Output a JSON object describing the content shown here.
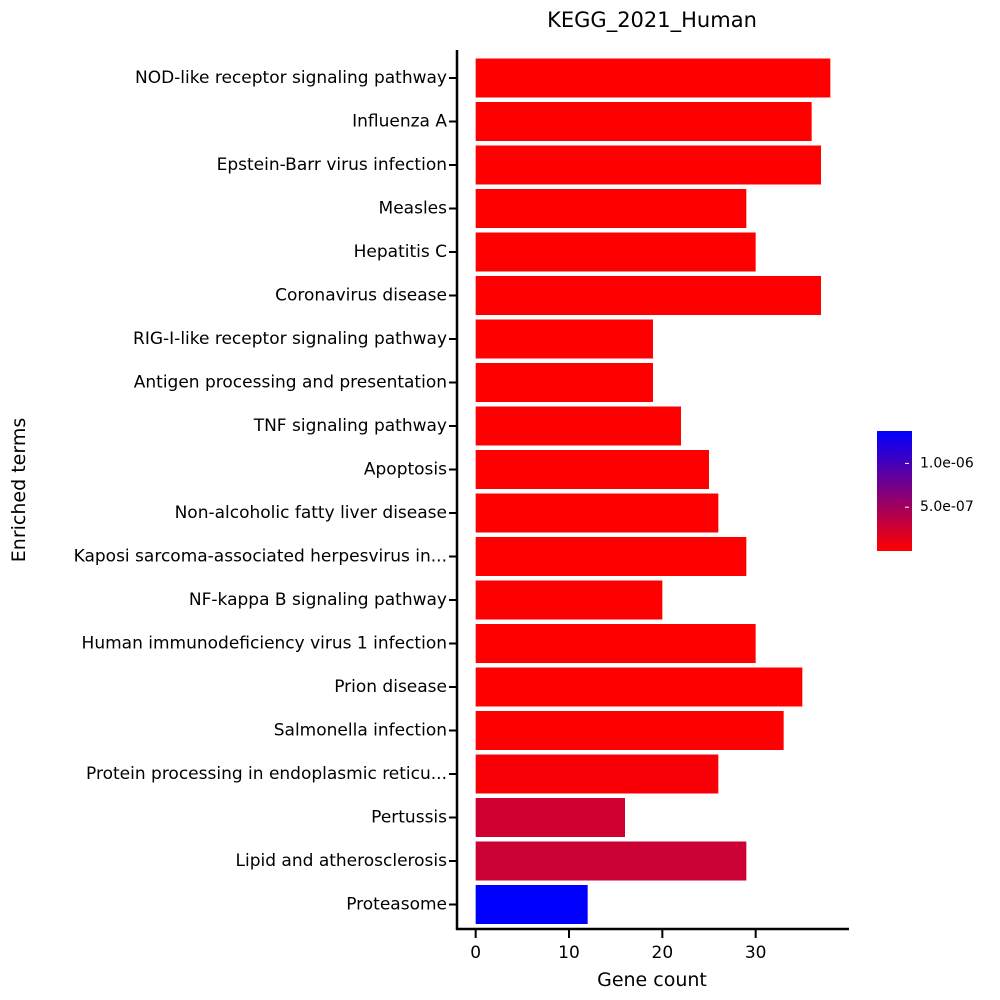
{
  "chart_data": {
    "type": "bar",
    "orientation": "horizontal",
    "title": "KEGG_2021_Human",
    "xlabel": "Gene count",
    "ylabel": "Enriched terms",
    "xlim": [
      -2,
      40
    ],
    "xticks": [
      0,
      10,
      20,
      30
    ],
    "grid": false,
    "categories": [
      "NOD-like receptor signaling pathway",
      "Influenza A",
      "Epstein-Barr virus infection",
      "Measles",
      "Hepatitis C",
      "Coronavirus disease",
      "RIG-I-like receptor signaling pathway",
      "Antigen processing and presentation",
      "TNF signaling pathway",
      "Apoptosis",
      "Non-alcoholic fatty liver disease",
      "Kaposi sarcoma-associated herpesvirus in...",
      "NF-kappa B signaling pathway",
      "Human immunodeficiency virus 1 infection",
      "Prion disease",
      "Salmonella infection",
      "Protein processing in endoplasmic reticu...",
      "Pertussis",
      "Lipid and atherosclerosis",
      "Proteasome"
    ],
    "values": [
      38,
      36,
      37,
      29,
      30,
      37,
      19,
      19,
      22,
      25,
      26,
      29,
      20,
      30,
      35,
      33,
      26,
      16,
      29,
      12
    ],
    "color_values": [
      1e-13,
      4e-12,
      6e-12,
      2e-11,
      3e-11,
      4e-11,
      9e-11,
      1.2e-10,
      2e-10,
      6e-10,
      9e-10,
      1.5e-09,
      3e-09,
      5e-09,
      8e-09,
      1.2e-08,
      3e-08,
      2.6e-07,
      2.8e-07,
      1.37e-06
    ],
    "colorbar": {
      "min": 0,
      "max": 1.37e-06,
      "ticks": [
        {
          "value": 5e-07,
          "label": "5.0e-07"
        },
        {
          "value": 1e-06,
          "label": "1.0e-06"
        }
      ],
      "low_color": "#ff0000",
      "high_color": "#0000ff",
      "placement": "right"
    },
    "legend": "colorbar-right"
  }
}
